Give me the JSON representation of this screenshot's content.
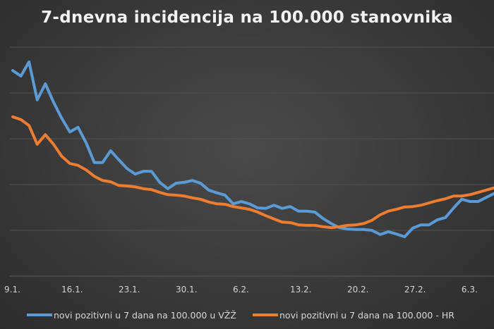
{
  "chart_data": {
    "type": "line",
    "title": "7-dnevna incidencija na 100.000 stanovnika",
    "xlabel": "",
    "ylabel": "",
    "ylim": [
      0,
      5
    ],
    "grid": true,
    "legend_position": "bottom",
    "x_tick_labels": [
      "9.1.",
      "16.1.",
      "23.1.",
      "30.1.",
      "6.2.",
      "13.2.",
      "20.2.",
      "27.2.",
      "6.3."
    ],
    "x": [
      "9.1.",
      "10.1.",
      "11.1.",
      "12.1.",
      "13.1.",
      "14.1.",
      "15.1.",
      "16.1.",
      "17.1.",
      "18.1.",
      "19.1.",
      "20.1.",
      "21.1.",
      "22.1.",
      "23.1.",
      "24.1.",
      "25.1.",
      "26.1.",
      "27.1.",
      "28.1.",
      "29.1.",
      "30.1.",
      "31.1.",
      "1.2.",
      "2.2.",
      "3.2.",
      "4.2.",
      "5.2.",
      "6.2.",
      "7.2.",
      "8.2.",
      "9.2.",
      "10.2.",
      "11.2.",
      "12.2.",
      "13.2.",
      "14.2.",
      "15.2.",
      "16.2.",
      "17.2.",
      "18.2.",
      "19.2.",
      "20.2.",
      "21.2.",
      "22.2.",
      "23.2.",
      "24.2.",
      "25.2.",
      "26.2.",
      "27.2.",
      "28.2.",
      "1.3.",
      "2.3.",
      "3.3.",
      "4.3.",
      "5.3.",
      "6.3.",
      "7.3.",
      "8.3."
    ],
    "series": [
      {
        "name": "novi pozitivni u 7 dana na 100.000 u VŽŽ",
        "color": "#5b9bd5",
        "values": [
          4.49,
          4.37,
          4.68,
          3.85,
          4.2,
          3.8,
          3.45,
          3.15,
          3.25,
          2.91,
          2.48,
          2.48,
          2.74,
          2.54,
          2.35,
          2.23,
          2.29,
          2.29,
          2.05,
          1.91,
          2.03,
          2.05,
          2.09,
          2.03,
          1.88,
          1.82,
          1.77,
          1.58,
          1.63,
          1.58,
          1.49,
          1.48,
          1.55,
          1.48,
          1.52,
          1.42,
          1.42,
          1.4,
          1.26,
          1.15,
          1.06,
          1.03,
          1.02,
          1.02,
          1.0,
          0.91,
          0.97,
          0.92,
          0.86,
          1.05,
          1.12,
          1.12,
          1.23,
          1.28,
          1.49,
          1.68,
          1.63,
          1.63,
          1.72
        ]
      },
      {
        "name": "novi pozitivni u 7 dana na 100.000 - HR",
        "color": "#ed7d31",
        "values": [
          3.48,
          3.42,
          3.29,
          2.88,
          3.09,
          2.88,
          2.62,
          2.46,
          2.42,
          2.32,
          2.18,
          2.09,
          2.06,
          1.98,
          1.97,
          1.95,
          1.91,
          1.89,
          1.83,
          1.78,
          1.77,
          1.75,
          1.71,
          1.68,
          1.62,
          1.58,
          1.57,
          1.52,
          1.49,
          1.46,
          1.4,
          1.32,
          1.25,
          1.18,
          1.17,
          1.12,
          1.11,
          1.11,
          1.08,
          1.06,
          1.08,
          1.11,
          1.12,
          1.15,
          1.22,
          1.34,
          1.42,
          1.46,
          1.51,
          1.52,
          1.55,
          1.6,
          1.65,
          1.69,
          1.75,
          1.75,
          1.78,
          1.83,
          1.88
        ]
      }
    ]
  }
}
